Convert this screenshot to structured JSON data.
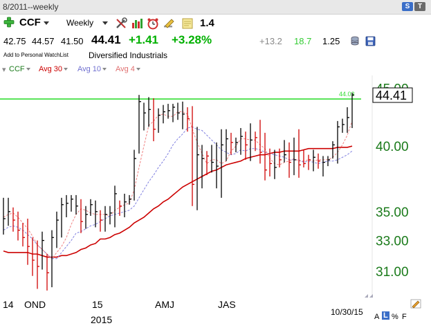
{
  "window": {
    "title": "8/2011--weekly"
  },
  "toolbar": {
    "symbol": "CCF",
    "period": "Weekly",
    "last_value": "1.4",
    "title_buttons": [
      "S",
      "T"
    ]
  },
  "quote": {
    "open": "42.75",
    "high": "44.57",
    "low": "41.50",
    "close": "44.41",
    "change": "+1.41",
    "change_pct": "+3.28%",
    "stat1": "+13.2",
    "stat2": "18.7",
    "stat3": "1.25"
  },
  "info": {
    "watchlist_link": "Add to Personal WatchList",
    "industry": "Diversified Industrials"
  },
  "legend": {
    "symbol": "CCF",
    "ma30": "Avg 30",
    "ma10": "Avg 10",
    "ma4": "Avg 4"
  },
  "colors": {
    "up": "#00b000",
    "ma30": "#cc0000",
    "ma10": "#8080e0",
    "ma4": "#f08080",
    "axis_text": "#1a7a1a",
    "hline": "#33dd33",
    "bar_black": "#000000",
    "bar_red": "#d00000"
  },
  "footer": {
    "date": "10/30/15",
    "buttons": [
      "A",
      "L",
      "%",
      "F"
    ]
  },
  "chart_data": {
    "type": "ohlc",
    "ylim": [
      29.5,
      46.2
    ],
    "y_scale": "log",
    "y_ticks": [
      "45.00",
      "40.00",
      "35.00",
      "33.00",
      "31.00"
    ],
    "y_tick_values": [
      45,
      40,
      35,
      33,
      31
    ],
    "x_labels": [
      {
        "text": "14",
        "i": 0
      },
      {
        "text": "OND",
        "i": 6
      },
      {
        "text": "15",
        "i": 20
      },
      {
        "text": "2015",
        "i": 20
      },
      {
        "text": "AMJ",
        "i": 33
      },
      {
        "text": "JAS",
        "i": 46
      }
    ],
    "hline": {
      "value": 44.03,
      "label": "44.03"
    },
    "last_price": {
      "value": 44.41,
      "label": "44.41"
    },
    "bars": [
      {
        "h": 36.0,
        "l": 33.4,
        "c": 34.5,
        "col": "k"
      },
      {
        "h": 36.0,
        "l": 34.0,
        "c": 35.0,
        "col": "k"
      },
      {
        "h": 35.3,
        "l": 33.6,
        "c": 34.4,
        "col": "r"
      },
      {
        "h": 35.0,
        "l": 33.0,
        "c": 33.7,
        "col": "r"
      },
      {
        "h": 34.2,
        "l": 32.6,
        "c": 33.2,
        "col": "r"
      },
      {
        "h": 34.5,
        "l": 31.4,
        "c": 32.6,
        "col": "r"
      },
      {
        "h": 33.2,
        "l": 30.7,
        "c": 31.7,
        "col": "r"
      },
      {
        "h": 33.0,
        "l": 29.9,
        "c": 31.3,
        "col": "r"
      },
      {
        "h": 33.6,
        "l": 31.1,
        "c": 33.0,
        "col": "k"
      },
      {
        "h": 32.1,
        "l": 29.8,
        "c": 30.9,
        "col": "r"
      },
      {
        "h": 33.7,
        "l": 30.0,
        "c": 33.2,
        "col": "k"
      },
      {
        "h": 35.0,
        "l": 32.5,
        "c": 34.4,
        "col": "k"
      },
      {
        "h": 36.0,
        "l": 33.2,
        "c": 35.5,
        "col": "k"
      },
      {
        "h": 36.2,
        "l": 34.6,
        "c": 35.6,
        "col": "k"
      },
      {
        "h": 36.2,
        "l": 35.0,
        "c": 35.9,
        "col": "k"
      },
      {
        "h": 36.2,
        "l": 34.8,
        "c": 35.4,
        "col": "k"
      },
      {
        "h": 35.9,
        "l": 33.5,
        "c": 34.3,
        "col": "r"
      },
      {
        "h": 35.4,
        "l": 33.8,
        "c": 34.8,
        "col": "k"
      },
      {
        "h": 35.9,
        "l": 34.7,
        "c": 35.5,
        "col": "k"
      },
      {
        "h": 35.8,
        "l": 33.9,
        "c": 35.0,
        "col": "k"
      },
      {
        "h": 35.1,
        "l": 33.6,
        "c": 34.4,
        "col": "r"
      },
      {
        "h": 35.4,
        "l": 33.6,
        "c": 34.8,
        "col": "k"
      },
      {
        "h": 35.4,
        "l": 34.1,
        "c": 34.9,
        "col": "k"
      },
      {
        "h": 36.9,
        "l": 33.9,
        "c": 36.3,
        "col": "k"
      },
      {
        "h": 35.8,
        "l": 34.7,
        "c": 35.4,
        "col": "r"
      },
      {
        "h": 36.3,
        "l": 34.6,
        "c": 35.7,
        "col": "k"
      },
      {
        "h": 36.2,
        "l": 35.5,
        "c": 35.9,
        "col": "k"
      },
      {
        "h": 39.7,
        "l": 35.8,
        "c": 39.0,
        "col": "k"
      },
      {
        "h": 44.4,
        "l": 39.4,
        "c": 43.8,
        "col": "k"
      },
      {
        "h": 43.7,
        "l": 41.3,
        "c": 42.8,
        "col": "k"
      },
      {
        "h": 44.2,
        "l": 41.6,
        "c": 43.1,
        "col": "k"
      },
      {
        "h": 44.1,
        "l": 40.4,
        "c": 41.4,
        "col": "r"
      },
      {
        "h": 43.2,
        "l": 41.1,
        "c": 42.6,
        "col": "k"
      },
      {
        "h": 43.5,
        "l": 41.9,
        "c": 42.9,
        "col": "k"
      },
      {
        "h": 43.6,
        "l": 42.3,
        "c": 43.0,
        "col": "k"
      },
      {
        "h": 43.6,
        "l": 42.0,
        "c": 43.3,
        "col": "k"
      },
      {
        "h": 43.7,
        "l": 42.2,
        "c": 42.8,
        "col": "k"
      },
      {
        "h": 43.8,
        "l": 41.4,
        "c": 42.7,
        "col": "k"
      },
      {
        "h": 43.3,
        "l": 41.2,
        "c": 42.3,
        "col": "r"
      },
      {
        "h": 43.4,
        "l": 35.4,
        "c": 37.0,
        "col": "r"
      },
      {
        "h": 41.6,
        "l": 35.1,
        "c": 39.3,
        "col": "k"
      },
      {
        "h": 40.1,
        "l": 36.7,
        "c": 39.0,
        "col": "k"
      },
      {
        "h": 39.6,
        "l": 37.7,
        "c": 39.2,
        "col": "r"
      },
      {
        "h": 40.1,
        "l": 37.9,
        "c": 38.7,
        "col": "k"
      },
      {
        "h": 40.3,
        "l": 36.7,
        "c": 38.4,
        "col": "k"
      },
      {
        "h": 41.4,
        "l": 36.0,
        "c": 40.1,
        "col": "k"
      },
      {
        "h": 41.4,
        "l": 38.8,
        "c": 40.6,
        "col": "k"
      },
      {
        "h": 41.1,
        "l": 39.3,
        "c": 40.3,
        "col": "r"
      },
      {
        "h": 40.7,
        "l": 39.5,
        "c": 40.3,
        "col": "k"
      },
      {
        "h": 41.5,
        "l": 39.3,
        "c": 40.8,
        "col": "k"
      },
      {
        "h": 41.2,
        "l": 38.9,
        "c": 40.1,
        "col": "r"
      },
      {
        "h": 41.9,
        "l": 38.8,
        "c": 40.5,
        "col": "k"
      },
      {
        "h": 41.2,
        "l": 39.6,
        "c": 40.7,
        "col": "r"
      },
      {
        "h": 42.2,
        "l": 38.6,
        "c": 39.5,
        "col": "r"
      },
      {
        "h": 41.1,
        "l": 37.3,
        "c": 38.1,
        "col": "r"
      },
      {
        "h": 39.8,
        "l": 37.6,
        "c": 38.6,
        "col": "r"
      },
      {
        "h": 39.7,
        "l": 37.4,
        "c": 38.3,
        "col": "k"
      },
      {
        "h": 39.8,
        "l": 38.3,
        "c": 38.9,
        "col": "r"
      },
      {
        "h": 40.5,
        "l": 38.7,
        "c": 39.3,
        "col": "k"
      },
      {
        "h": 40.3,
        "l": 37.5,
        "c": 38.7,
        "col": "r"
      },
      {
        "h": 40.7,
        "l": 37.7,
        "c": 38.9,
        "col": "k"
      },
      {
        "h": 41.4,
        "l": 37.5,
        "c": 38.5,
        "col": "r"
      },
      {
        "h": 39.7,
        "l": 38.3,
        "c": 38.6,
        "col": "r"
      },
      {
        "h": 39.3,
        "l": 38.1,
        "c": 38.9,
        "col": "r"
      },
      {
        "h": 39.7,
        "l": 38.0,
        "c": 39.1,
        "col": "k"
      },
      {
        "h": 39.4,
        "l": 38.2,
        "c": 38.8,
        "col": "r"
      },
      {
        "h": 39.2,
        "l": 37.6,
        "c": 38.7,
        "col": "k"
      },
      {
        "h": 39.2,
        "l": 38.4,
        "c": 38.9,
        "col": "k"
      },
      {
        "h": 40.4,
        "l": 39.0,
        "c": 40.1,
        "col": "k"
      },
      {
        "h": 42.1,
        "l": 38.6,
        "c": 41.6,
        "col": "k"
      },
      {
        "h": 42.3,
        "l": 41.1,
        "c": 41.8,
        "col": "k"
      },
      {
        "h": 43.3,
        "l": 41.1,
        "c": 42.4,
        "col": "k"
      },
      {
        "h": 44.6,
        "l": 41.5,
        "c": 44.4,
        "col": "k"
      }
    ],
    "series": [
      {
        "name": "Avg 30",
        "color": "#cc0000",
        "values": [
          32.3,
          32.2,
          32.2,
          32.2,
          32.2,
          32.2,
          32.1,
          32.1,
          32.0,
          31.9,
          31.9,
          31.9,
          32.0,
          32.0,
          32.1,
          32.2,
          32.4,
          32.5,
          32.7,
          32.8,
          33.1,
          33.1,
          33.2,
          33.4,
          33.5,
          33.7,
          33.9,
          34.2,
          34.4,
          34.6,
          34.9,
          35.2,
          35.4,
          35.7,
          35.9,
          36.2,
          36.5,
          36.8,
          37.0,
          37.2,
          37.4,
          37.6,
          37.8,
          38.0,
          38.1,
          38.3,
          38.5,
          38.6,
          38.7,
          38.8,
          39.0,
          39.1,
          39.2,
          39.3,
          39.3,
          39.4,
          39.5,
          39.5,
          39.6,
          39.6,
          39.6,
          39.6,
          39.7,
          39.8,
          39.8,
          39.8,
          39.8,
          39.8,
          39.8,
          39.9,
          39.9,
          39.9,
          40.0
        ]
      },
      {
        "name": "Avg 10",
        "color": "#8080e0",
        "values": [
          33.7,
          33.9,
          34.0,
          33.9,
          33.7,
          33.4,
          33.1,
          32.7,
          32.4,
          32.1,
          31.8,
          31.8,
          32.2,
          32.6,
          33.0,
          33.5,
          33.6,
          33.8,
          34.0,
          34.1,
          34.3,
          34.5,
          34.7,
          34.8,
          34.9,
          35.0,
          35.1,
          35.4,
          36.0,
          36.6,
          37.2,
          37.7,
          38.3,
          38.8,
          39.4,
          40.1,
          40.6,
          41.0,
          41.5,
          41.6,
          41.4,
          41.3,
          40.9,
          40.5,
          40.1,
          39.7,
          39.5,
          39.3,
          39.4,
          39.7,
          39.6,
          39.8,
          39.8,
          39.7,
          39.5,
          39.4,
          39.3,
          39.2,
          39.1,
          38.9,
          38.9,
          38.9,
          38.7,
          38.8,
          38.7,
          38.6,
          38.7,
          38.8,
          38.8,
          38.9,
          39.1,
          39.3,
          39.6
        ]
      },
      {
        "name": "Avg 4",
        "color": "#f08080",
        "values": [
          34.6,
          34.8,
          34.9,
          34.6,
          34.2,
          33.8,
          33.3,
          32.7,
          32.4,
          32.1,
          31.8,
          32.2,
          32.6,
          33.2,
          34.1,
          34.8,
          35.2,
          35.1,
          34.9,
          34.8,
          34.8,
          34.8,
          34.7,
          35.1,
          35.3,
          35.5,
          35.6,
          36.6,
          38.3,
          40.0,
          41.7,
          42.1,
          42.6,
          42.7,
          42.5,
          42.5,
          42.9,
          42.9,
          42.7,
          41.4,
          40.3,
          39.4,
          38.6,
          38.9,
          38.9,
          38.6,
          38.8,
          39.6,
          40.0,
          40.6,
          40.6,
          40.5,
          40.5,
          40.1,
          39.8,
          39.0,
          38.6,
          38.5,
          38.7,
          38.8,
          39.0,
          38.8,
          38.8,
          38.9,
          38.8,
          38.9,
          38.9,
          38.9,
          39.1,
          39.5,
          40.1,
          40.9,
          42.1
        ]
      }
    ]
  }
}
